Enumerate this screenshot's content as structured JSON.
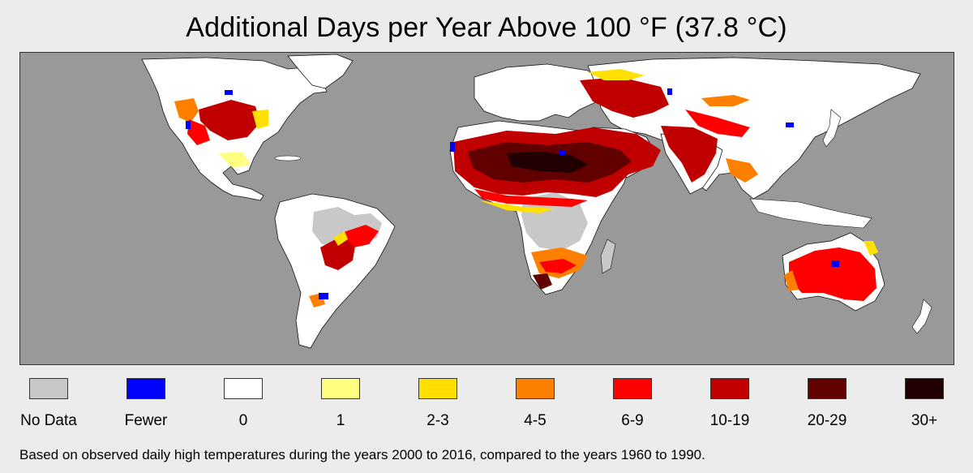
{
  "title": "Additional Days per Year Above 100 °F (37.8 °C)",
  "map": {
    "ocean_color": "#999999",
    "land_color": "#ffffff",
    "no_data_color": "#c8c8c8"
  },
  "legend": [
    {
      "label": "No Data",
      "color": "#c8c8c8"
    },
    {
      "label": "Fewer",
      "color": "#0000ff"
    },
    {
      "label": "0",
      "color": "#ffffff"
    },
    {
      "label": "1",
      "color": "#ffff80"
    },
    {
      "label": "2-3",
      "color": "#ffe000"
    },
    {
      "label": "4-5",
      "color": "#ff8000"
    },
    {
      "label": "6-9",
      "color": "#ff0000"
    },
    {
      "label": "10-19",
      "color": "#c00000"
    },
    {
      "label": "20-29",
      "color": "#600000"
    },
    {
      "label": "30+",
      "color": "#200000"
    }
  ],
  "footnote": "Based on observed daily high temperatures during the years 2000 to 2016, compared to the years 1960 to 1990."
}
